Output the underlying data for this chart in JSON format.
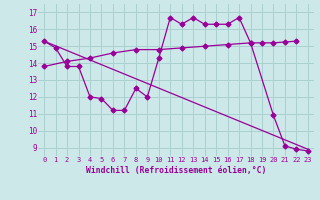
{
  "xlabel": "Windchill (Refroidissement éolien,°C)",
  "background_color": "#cde8e8",
  "line_color": "#990099",
  "xlim": [
    -0.5,
    23.5
  ],
  "ylim": [
    8.5,
    17.5
  ],
  "yticks": [
    9,
    10,
    11,
    12,
    13,
    14,
    15,
    16,
    17
  ],
  "xticks": [
    0,
    1,
    2,
    3,
    4,
    5,
    6,
    7,
    8,
    9,
    10,
    11,
    12,
    13,
    14,
    15,
    16,
    17,
    18,
    19,
    20,
    21,
    22,
    23
  ],
  "series1_x": [
    0,
    1,
    2,
    3,
    4,
    5,
    6,
    7,
    8,
    9,
    10,
    11,
    12,
    13,
    14,
    15,
    16,
    17,
    18,
    20,
    21,
    22,
    23
  ],
  "series1_y": [
    15.3,
    14.9,
    13.8,
    13.8,
    12.0,
    11.9,
    11.2,
    11.2,
    12.5,
    12.0,
    14.3,
    16.7,
    16.3,
    16.7,
    16.3,
    16.3,
    16.3,
    16.7,
    15.2,
    10.9,
    9.1,
    8.9,
    8.8
  ],
  "series2_x": [
    0,
    2,
    4,
    6,
    8,
    10,
    12,
    14,
    16,
    18,
    19,
    20,
    21,
    22
  ],
  "series2_y": [
    13.8,
    14.1,
    14.3,
    14.6,
    14.8,
    14.8,
    14.9,
    15.0,
    15.1,
    15.2,
    15.2,
    15.2,
    15.25,
    15.3
  ],
  "series3_x": [
    0,
    23
  ],
  "series3_y": [
    15.3,
    8.9
  ],
  "grid_color": "#aad0d0",
  "marker": "D",
  "markersize": 2.5,
  "linewidth": 0.9
}
